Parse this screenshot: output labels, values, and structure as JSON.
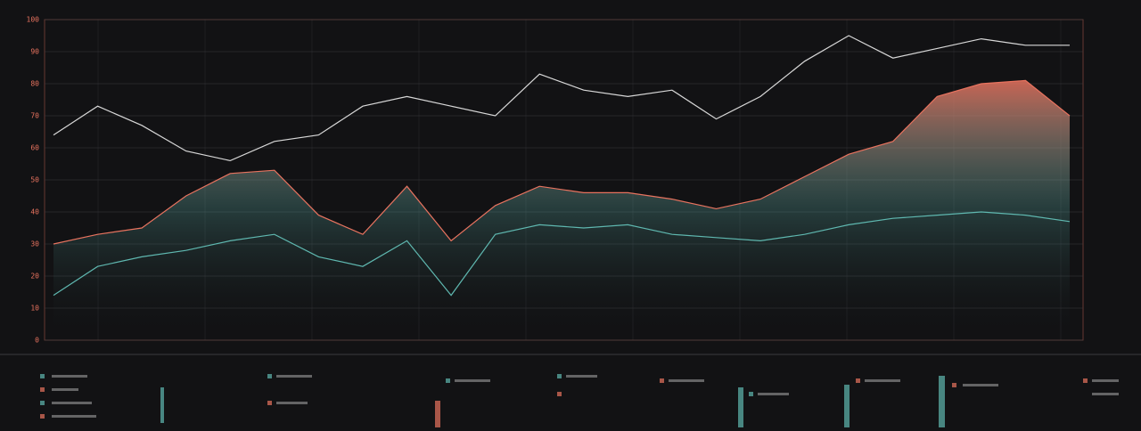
{
  "chart_data": {
    "type": "line",
    "series": [
      {
        "color": "#e8735f",
        "fill": true,
        "values": [
          30,
          33,
          35,
          45,
          52,
          53,
          39,
          33,
          48,
          31,
          42,
          48,
          46,
          46,
          44,
          41,
          44,
          51,
          58,
          62,
          76,
          80,
          81,
          70
        ]
      },
      {
        "color": "#d8d8d8",
        "values": [
          64,
          73,
          67,
          59,
          56,
          62,
          64,
          73,
          76,
          73,
          70,
          83,
          78,
          76,
          78,
          69,
          76,
          87,
          95,
          88,
          91,
          94,
          92,
          92
        ]
      },
      {
        "color": "#5fb8b0",
        "values": [
          14,
          23,
          26,
          28,
          31,
          33,
          26,
          23,
          31,
          14,
          33,
          36,
          35,
          36,
          33,
          32,
          31,
          33,
          36,
          38,
          39,
          40,
          39,
          37
        ]
      }
    ],
    "ylim": [
      0,
      100
    ],
    "yticks": [
      0,
      10,
      20,
      30,
      40,
      50,
      60,
      70,
      80,
      90,
      100
    ],
    "grid": true
  }
}
